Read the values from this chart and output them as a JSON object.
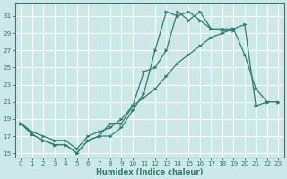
{
  "xlabel": "Humidex (Indice chaleur)",
  "bg_color": "#cce8e8",
  "grid_color": "#ffffff",
  "line_color": "#2e7d6e",
  "xlim": [
    -0.5,
    23.5
  ],
  "ylim": [
    14.5,
    32.5
  ],
  "xticks": [
    0,
    1,
    2,
    3,
    4,
    5,
    6,
    7,
    8,
    9,
    10,
    11,
    12,
    13,
    14,
    15,
    16,
    17,
    18,
    19,
    20,
    21,
    22,
    23
  ],
  "yticks": [
    15,
    17,
    19,
    21,
    23,
    25,
    27,
    29,
    31
  ],
  "series": [
    {
      "x": [
        0,
        1,
        2,
        3,
        4,
        5,
        6,
        7,
        8,
        9,
        10,
        11,
        12,
        13,
        14,
        15,
        16,
        17,
        18,
        19
      ],
      "y": [
        18.5,
        17.2,
        16.5,
        16.0,
        16.0,
        15.0,
        16.5,
        17.0,
        17.0,
        18.0,
        20.0,
        22.0,
        27.0,
        31.5,
        31.0,
        31.5,
        30.5,
        29.5,
        29.3,
        29.3
      ]
    },
    {
      "x": [
        0,
        1,
        2,
        3,
        4,
        5,
        6,
        7,
        8,
        9,
        10,
        11,
        12,
        13,
        14,
        15,
        16,
        17,
        18,
        19,
        20,
        21,
        22,
        23
      ],
      "y": [
        18.5,
        17.2,
        16.5,
        16.0,
        16.0,
        15.0,
        16.5,
        17.0,
        18.5,
        18.5,
        20.5,
        24.5,
        25.0,
        27.0,
        31.5,
        30.5,
        31.5,
        29.5,
        29.5,
        29.5,
        26.5,
        22.5,
        21.0,
        21.0
      ]
    },
    {
      "x": [
        0,
        1,
        2,
        3,
        4,
        5,
        6,
        7,
        8,
        9,
        10,
        11,
        12,
        13,
        14,
        15,
        16,
        17,
        18,
        19,
        20,
        21,
        22,
        23
      ],
      "y": [
        18.5,
        17.5,
        17.0,
        16.5,
        16.5,
        15.5,
        17.0,
        17.5,
        18.0,
        19.0,
        20.5,
        21.5,
        22.5,
        24.0,
        25.5,
        26.5,
        27.5,
        28.5,
        29.0,
        29.5,
        30.0,
        20.5,
        21.0,
        21.0
      ]
    }
  ]
}
